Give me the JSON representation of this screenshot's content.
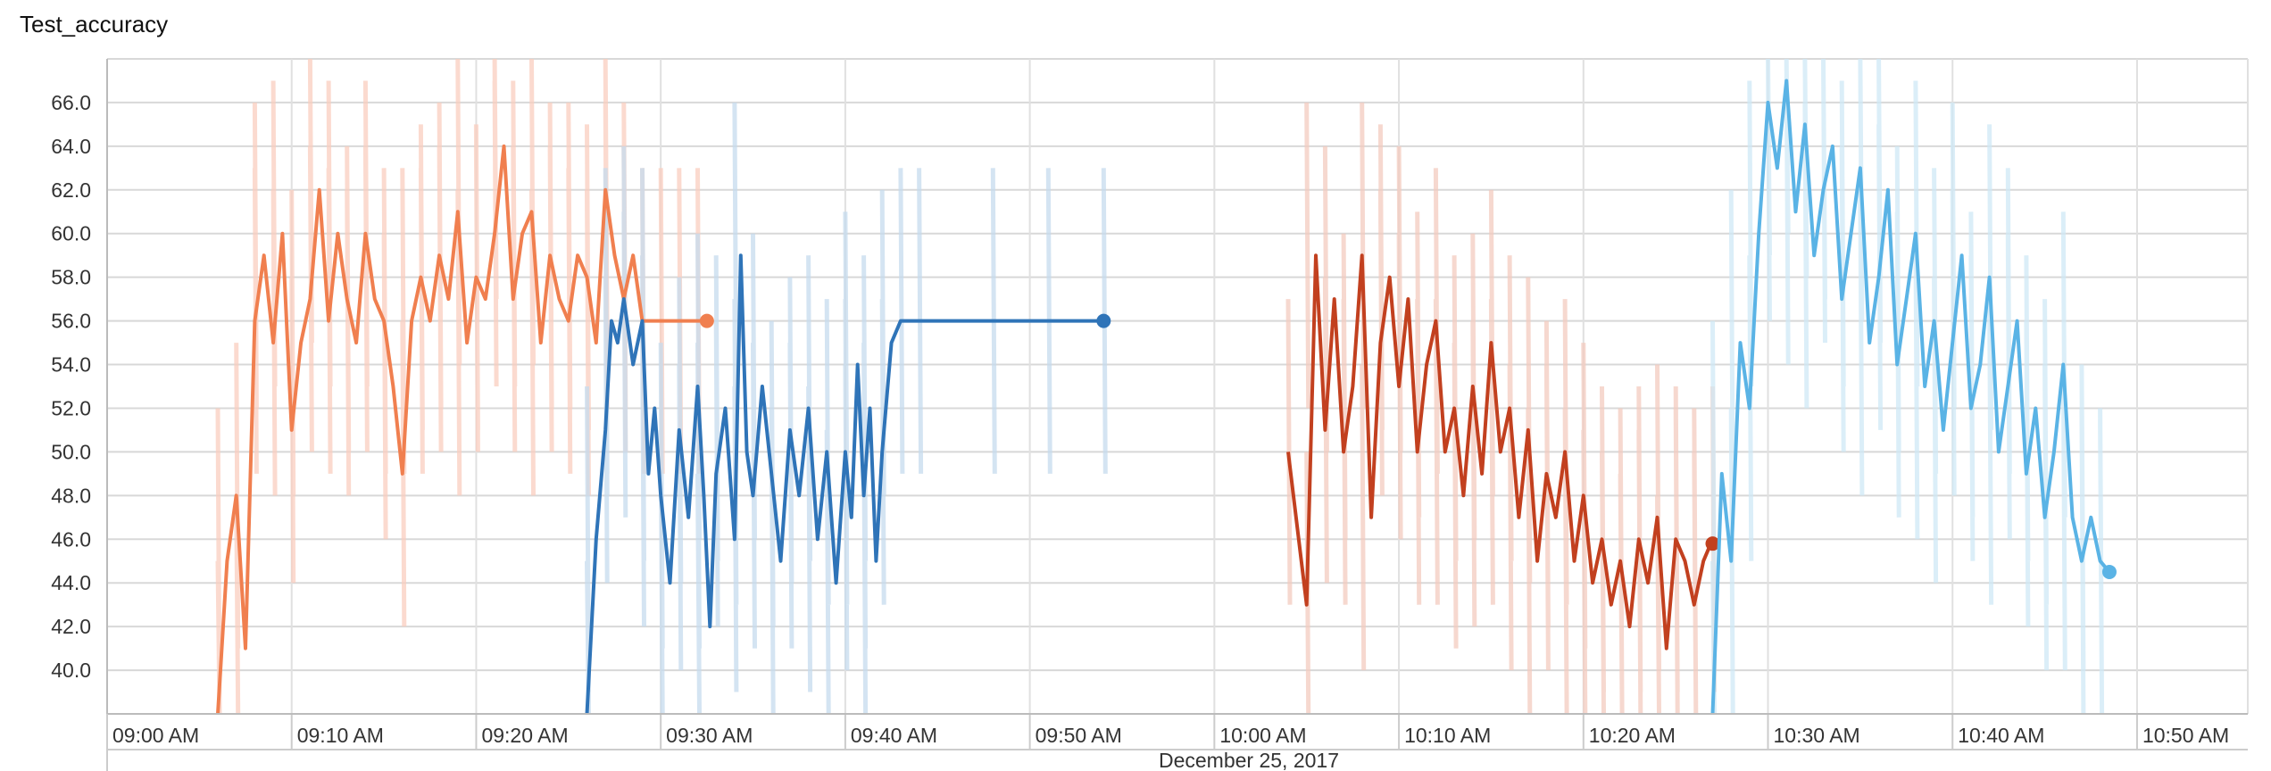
{
  "chart_data": {
    "type": "line",
    "title": "Test_accuracy",
    "xlabel": "December 25, 2017",
    "ylabel": "",
    "x_axis": {
      "kind": "time",
      "range": [
        "09:00 AM",
        "10:56 AM"
      ],
      "tick_labels": [
        "09:00 AM",
        "09:10 AM",
        "09:20 AM",
        "09:30 AM",
        "09:40 AM",
        "09:50 AM",
        "10:00 AM",
        "10:10 AM",
        "10:20 AM",
        "10:30 AM",
        "10:40 AM",
        "10:50 AM"
      ]
    },
    "y_axis": {
      "range": [
        38.0,
        68.0
      ],
      "tick_labels": [
        "40.0",
        "42.0",
        "44.0",
        "46.0",
        "48.0",
        "50.0",
        "52.0",
        "54.0",
        "56.0",
        "58.0",
        "60.0",
        "62.0",
        "64.0",
        "66.0"
      ]
    },
    "grid": true,
    "legend": "none",
    "series": [
      {
        "color": "#f07f4f",
        "raw_color": "#f9cdbf",
        "points": [
          [
            "09:06 AM",
            38
          ],
          [
            "09:06 AM",
            45
          ],
          [
            "09:07 AM",
            48
          ],
          [
            "09:07 AM",
            41
          ],
          [
            "09:08 AM",
            56
          ],
          [
            "09:08 AM",
            59
          ],
          [
            "09:09 AM",
            55
          ],
          [
            "09:09 AM",
            60
          ],
          [
            "09:10 AM",
            51
          ],
          [
            "09:10 AM",
            55
          ],
          [
            "09:11 AM",
            57
          ],
          [
            "09:11 AM",
            62
          ],
          [
            "09:12 AM",
            56
          ],
          [
            "09:12 AM",
            60
          ],
          [
            "09:13 AM",
            57
          ],
          [
            "09:13 AM",
            55
          ],
          [
            "09:14 AM",
            60
          ],
          [
            "09:14 AM",
            57
          ],
          [
            "09:15 AM",
            56
          ],
          [
            "09:15 AM",
            53
          ],
          [
            "09:16 AM",
            49
          ],
          [
            "09:16 AM",
            56
          ],
          [
            "09:17 AM",
            58
          ],
          [
            "09:17 AM",
            56
          ],
          [
            "09:18 AM",
            59
          ],
          [
            "09:18 AM",
            57
          ],
          [
            "09:19 AM",
            61
          ],
          [
            "09:19 AM",
            55
          ],
          [
            "09:20 AM",
            58
          ],
          [
            "09:20 AM",
            57
          ],
          [
            "09:21 AM",
            60
          ],
          [
            "09:21 AM",
            64
          ],
          [
            "09:22 AM",
            57
          ],
          [
            "09:22 AM",
            60
          ],
          [
            "09:23 AM",
            61
          ],
          [
            "09:23 AM",
            55
          ],
          [
            "09:24 AM",
            59
          ],
          [
            "09:24 AM",
            57
          ],
          [
            "09:25 AM",
            56
          ],
          [
            "09:25 AM",
            59
          ],
          [
            "09:26 AM",
            58
          ],
          [
            "09:26 AM",
            55
          ],
          [
            "09:27 AM",
            62
          ],
          [
            "09:27 AM",
            59
          ],
          [
            "09:28 AM",
            57
          ],
          [
            "09:28 AM",
            59
          ],
          [
            "09:29 AM",
            56
          ],
          [
            "09:29 AM",
            56
          ],
          [
            "09:30 AM",
            56
          ],
          [
            "09:30 AM",
            56
          ],
          [
            "09:31 AM",
            56
          ],
          [
            "09:31 AM",
            56
          ],
          [
            "09:32 AM",
            56
          ],
          [
            "09:32 AM",
            56
          ]
        ],
        "last_value": 56.0
      },
      {
        "color": "#2f74b8",
        "raw_color": "#c6dbee",
        "points": [
          [
            "09:26 AM",
            38
          ],
          [
            "09:26 AM",
            46
          ],
          [
            "09:27 AM",
            51
          ],
          [
            "09:27 AM",
            56
          ],
          [
            "09:27 AM",
            55
          ],
          [
            "09:28 AM",
            57
          ],
          [
            "09:28 AM",
            54
          ],
          [
            "09:29 AM",
            56
          ],
          [
            "09:29 AM",
            49
          ],
          [
            "09:29 AM",
            52
          ],
          [
            "09:30 AM",
            48
          ],
          [
            "09:30 AM",
            44
          ],
          [
            "09:31 AM",
            51
          ],
          [
            "09:31 AM",
            47
          ],
          [
            "09:32 AM",
            53
          ],
          [
            "09:32 AM",
            48
          ],
          [
            "09:32 AM",
            42
          ],
          [
            "09:33 AM",
            49
          ],
          [
            "09:33 AM",
            52
          ],
          [
            "09:34 AM",
            46
          ],
          [
            "09:34 AM",
            59
          ],
          [
            "09:34 AM",
            50
          ],
          [
            "09:35 AM",
            48
          ],
          [
            "09:35 AM",
            53
          ],
          [
            "09:36 AM",
            49
          ],
          [
            "09:36 AM",
            45
          ],
          [
            "09:37 AM",
            51
          ],
          [
            "09:37 AM",
            48
          ],
          [
            "09:38 AM",
            52
          ],
          [
            "09:38 AM",
            46
          ],
          [
            "09:39 AM",
            50
          ],
          [
            "09:39 AM",
            44
          ],
          [
            "09:40 AM",
            50
          ],
          [
            "09:40 AM",
            47
          ],
          [
            "09:40 AM",
            54
          ],
          [
            "09:41 AM",
            48
          ],
          [
            "09:41 AM",
            52
          ],
          [
            "09:41 AM",
            45
          ],
          [
            "09:42 AM",
            50
          ],
          [
            "09:42 AM",
            55
          ],
          [
            "09:43 AM",
            56
          ],
          [
            "09:44 AM",
            56
          ],
          [
            "09:48 AM",
            56
          ],
          [
            "09:51 AM",
            56
          ],
          [
            "09:54 AM",
            56
          ]
        ],
        "last_value": 56.0
      },
      {
        "color": "#c2401f",
        "raw_color": "#f3cbbf",
        "points": [
          [
            "10:04 AM",
            50
          ],
          [
            "10:05 AM",
            43
          ],
          [
            "10:05 AM",
            59
          ],
          [
            "10:06 AM",
            51
          ],
          [
            "10:06 AM",
            57
          ],
          [
            "10:07 AM",
            50
          ],
          [
            "10:07 AM",
            53
          ],
          [
            "10:08 AM",
            59
          ],
          [
            "10:08 AM",
            47
          ],
          [
            "10:09 AM",
            55
          ],
          [
            "10:09 AM",
            58
          ],
          [
            "10:10 AM",
            53
          ],
          [
            "10:10 AM",
            57
          ],
          [
            "10:11 AM",
            50
          ],
          [
            "10:11 AM",
            54
          ],
          [
            "10:12 AM",
            56
          ],
          [
            "10:12 AM",
            50
          ],
          [
            "10:13 AM",
            52
          ],
          [
            "10:13 AM",
            48
          ],
          [
            "10:14 AM",
            53
          ],
          [
            "10:14 AM",
            49
          ],
          [
            "10:15 AM",
            55
          ],
          [
            "10:15 AM",
            50
          ],
          [
            "10:16 AM",
            52
          ],
          [
            "10:16 AM",
            47
          ],
          [
            "10:17 AM",
            51
          ],
          [
            "10:17 AM",
            45
          ],
          [
            "10:18 AM",
            49
          ],
          [
            "10:18 AM",
            47
          ],
          [
            "10:19 AM",
            50
          ],
          [
            "10:19 AM",
            45
          ],
          [
            "10:20 AM",
            48
          ],
          [
            "10:20 AM",
            44
          ],
          [
            "10:21 AM",
            46
          ],
          [
            "10:21 AM",
            43
          ],
          [
            "10:22 AM",
            45
          ],
          [
            "10:22 AM",
            42
          ],
          [
            "10:23 AM",
            46
          ],
          [
            "10:23 AM",
            44
          ],
          [
            "10:24 AM",
            47
          ],
          [
            "10:24 AM",
            41
          ],
          [
            "10:25 AM",
            46
          ],
          [
            "10:25 AM",
            45
          ],
          [
            "10:26 AM",
            43
          ],
          [
            "10:26 AM",
            45
          ],
          [
            "10:27 AM",
            46
          ]
        ],
        "last_value": 45.8
      },
      {
        "color": "#5ab3e5",
        "raw_color": "#cfe8f6",
        "points": [
          [
            "10:27 AM",
            38
          ],
          [
            "10:27 AM",
            49
          ],
          [
            "10:28 AM",
            45
          ],
          [
            "10:28 AM",
            55
          ],
          [
            "10:29 AM",
            52
          ],
          [
            "10:29 AM",
            60
          ],
          [
            "10:30 AM",
            66
          ],
          [
            "10:30 AM",
            63
          ],
          [
            "10:31 AM",
            67
          ],
          [
            "10:31 AM",
            61
          ],
          [
            "10:32 AM",
            65
          ],
          [
            "10:32 AM",
            59
          ],
          [
            "10:33 AM",
            62
          ],
          [
            "10:33 AM",
            64
          ],
          [
            "10:34 AM",
            57
          ],
          [
            "10:34 AM",
            60
          ],
          [
            "10:35 AM",
            63
          ],
          [
            "10:35 AM",
            55
          ],
          [
            "10:36 AM",
            58
          ],
          [
            "10:36 AM",
            62
          ],
          [
            "10:37 AM",
            54
          ],
          [
            "10:37 AM",
            57
          ],
          [
            "10:38 AM",
            60
          ],
          [
            "10:38 AM",
            53
          ],
          [
            "10:39 AM",
            56
          ],
          [
            "10:39 AM",
            51
          ],
          [
            "10:40 AM",
            55
          ],
          [
            "10:40 AM",
            59
          ],
          [
            "10:41 AM",
            52
          ],
          [
            "10:41 AM",
            54
          ],
          [
            "10:42 AM",
            58
          ],
          [
            "10:42 AM",
            50
          ],
          [
            "10:43 AM",
            53
          ],
          [
            "10:43 AM",
            56
          ],
          [
            "10:44 AM",
            49
          ],
          [
            "10:44 AM",
            52
          ],
          [
            "10:45 AM",
            47
          ],
          [
            "10:45 AM",
            50
          ],
          [
            "10:46 AM",
            54
          ],
          [
            "10:46 AM",
            47
          ],
          [
            "10:47 AM",
            45
          ],
          [
            "10:47 AM",
            47
          ],
          [
            "10:48 AM",
            45
          ],
          [
            "10:48 AM",
            44.5
          ]
        ],
        "last_value": 44.5
      }
    ]
  }
}
